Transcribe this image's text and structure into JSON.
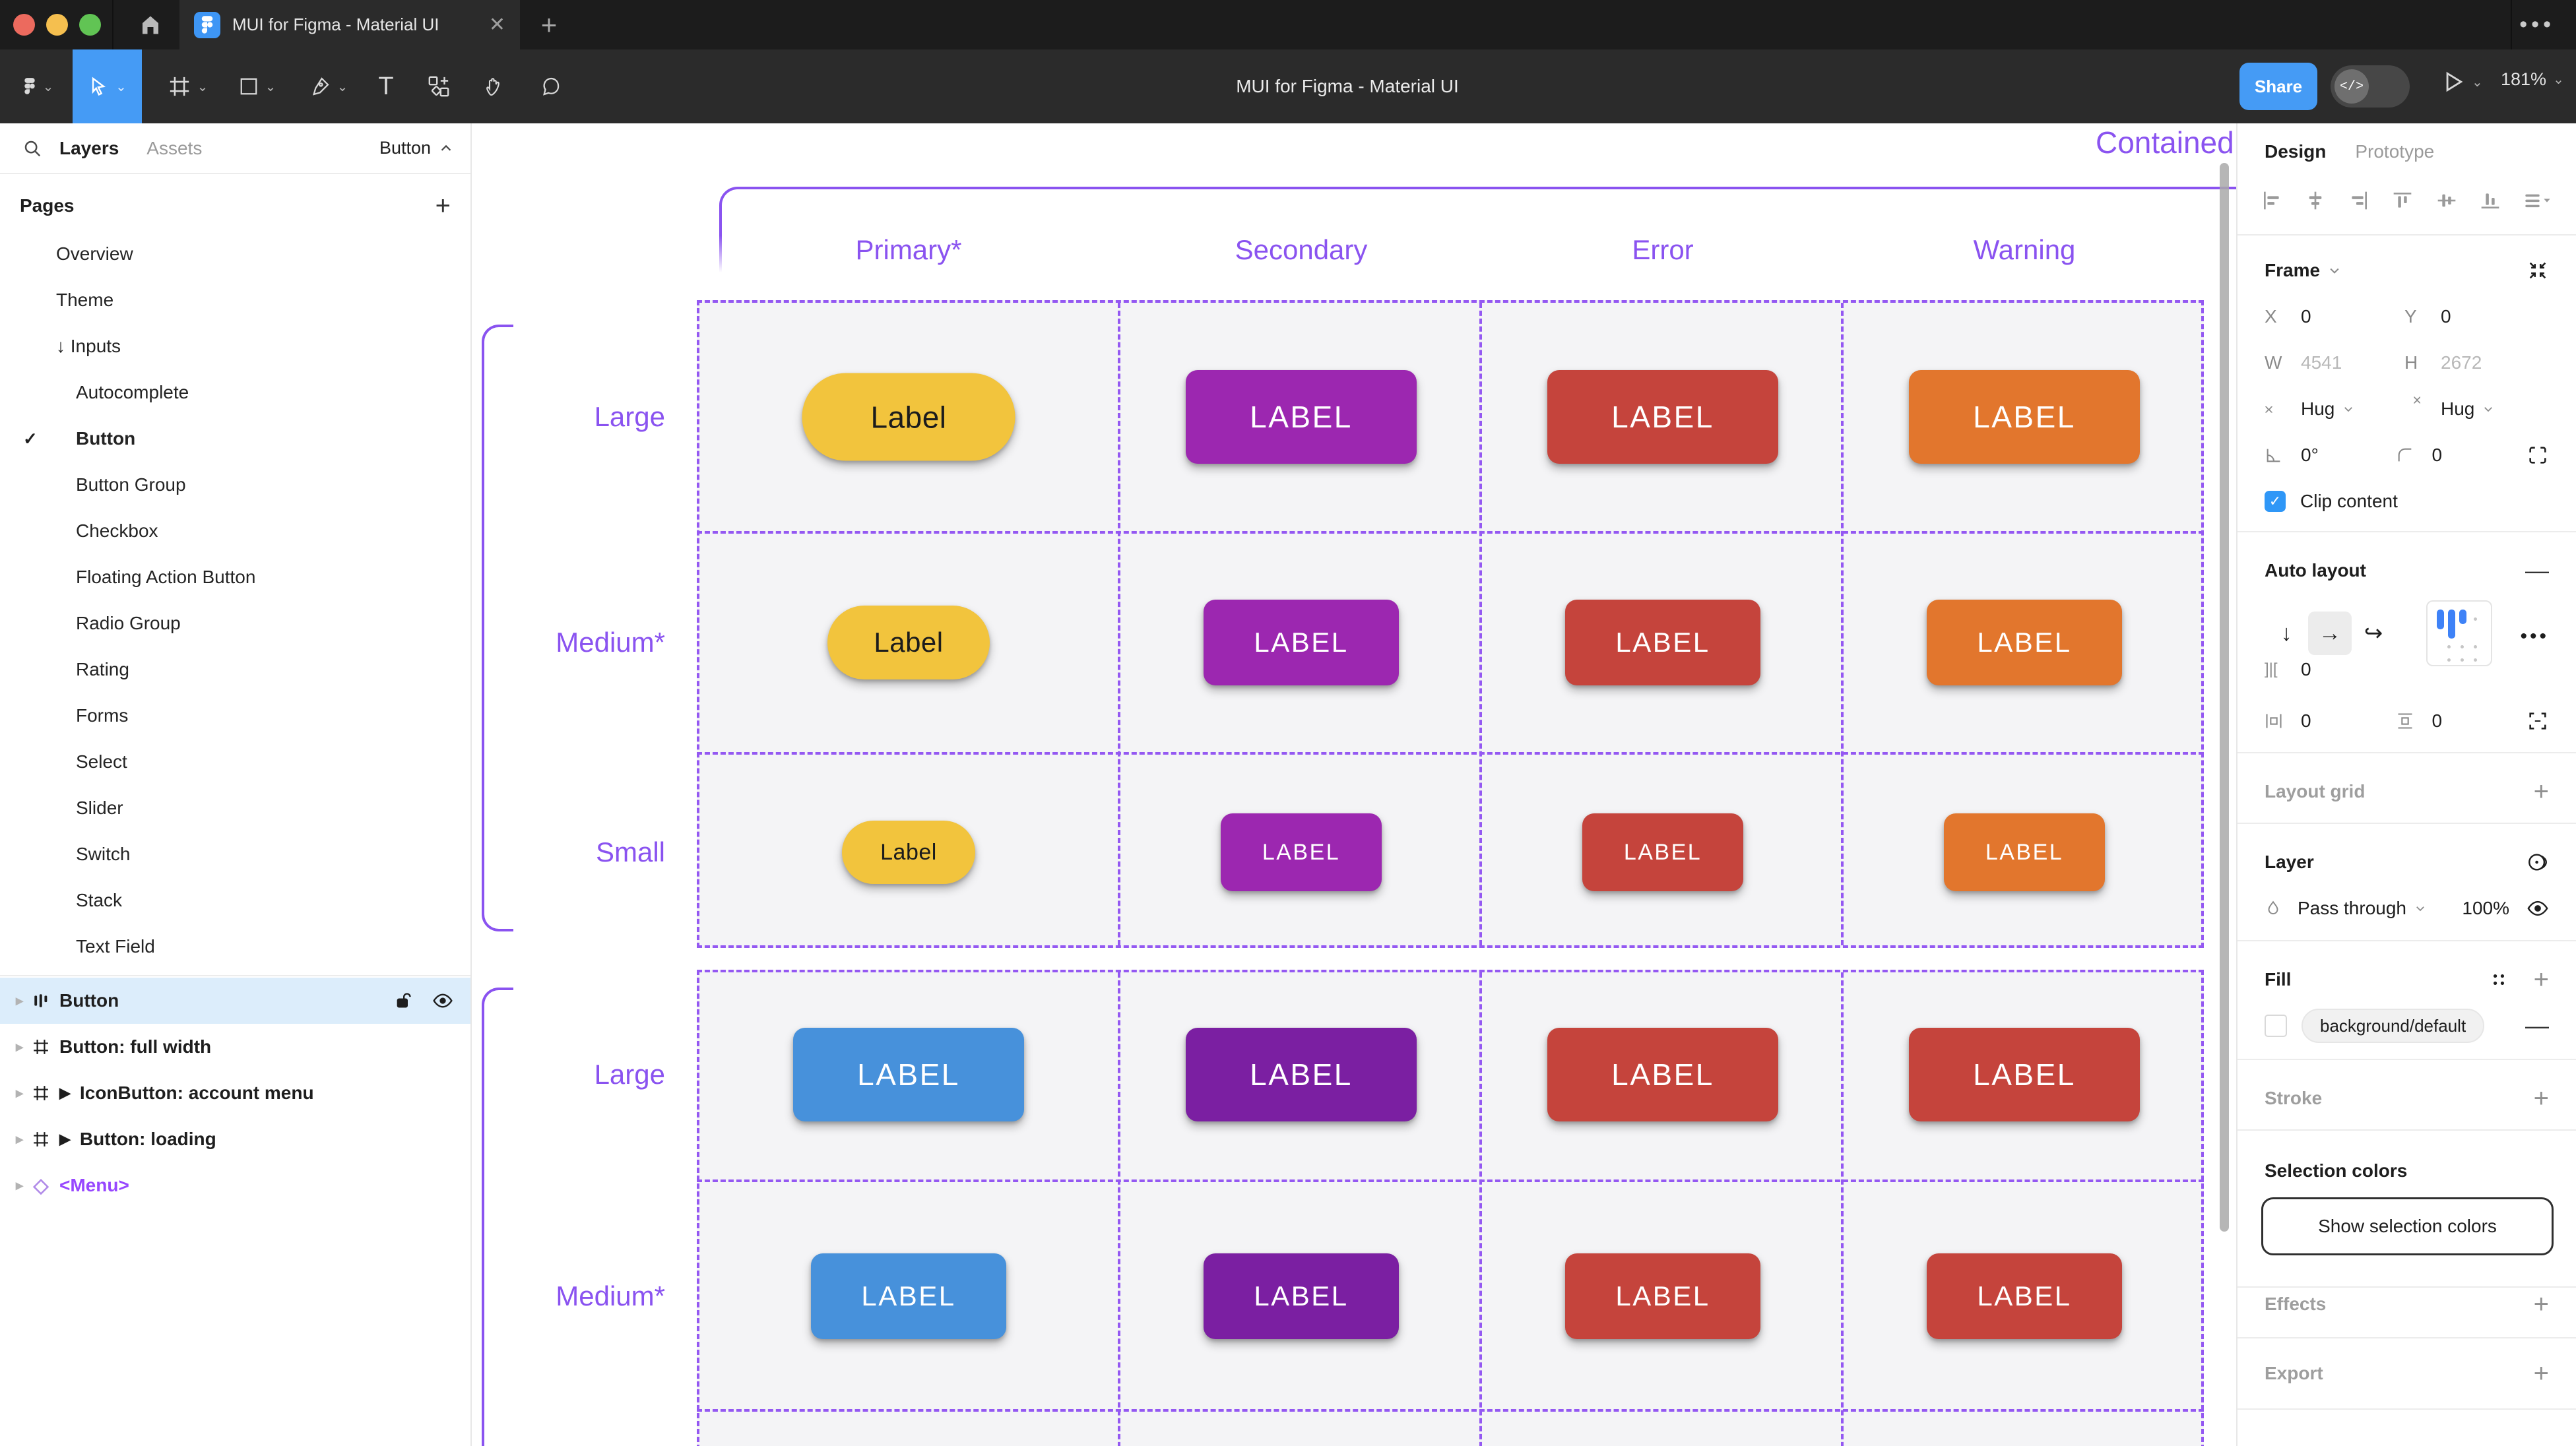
{
  "window": {
    "tab_title": "MUI for Figma - Material UI",
    "toolbar_title": "MUI for Figma - Material UI",
    "share_label": "Share",
    "zoom_level": "181%",
    "dev_toggle_glyph": "</>",
    "menu_dots": "•••"
  },
  "sidebar": {
    "tabs": {
      "layers": "Layers",
      "assets": "Assets"
    },
    "page_switcher": "Button",
    "pages_header": "Pages",
    "pages": [
      {
        "label": "Overview",
        "level": 1
      },
      {
        "label": "Theme",
        "level": 1
      },
      {
        "label": "Inputs",
        "level": 1,
        "prefix": "↓"
      },
      {
        "label": "Autocomplete",
        "level": 2
      },
      {
        "label": "Button",
        "level": 2,
        "checked": true
      },
      {
        "label": "Button Group",
        "level": 2
      },
      {
        "label": "Checkbox",
        "level": 2
      },
      {
        "label": "Floating Action Button",
        "level": 2
      },
      {
        "label": "Radio Group",
        "level": 2
      },
      {
        "label": "Rating",
        "level": 2
      },
      {
        "label": "Forms",
        "level": 2
      },
      {
        "label": "Select",
        "level": 2
      },
      {
        "label": "Slider",
        "level": 2
      },
      {
        "label": "Switch",
        "level": 2
      },
      {
        "label": "Stack",
        "level": 2
      },
      {
        "label": "Text Field",
        "level": 2
      }
    ],
    "layers": [
      {
        "label": "Button",
        "icon": "auto-layout",
        "selected": true
      },
      {
        "label": "Button: full width",
        "icon": "frame"
      },
      {
        "label": "IconButton: account menu",
        "icon": "frame",
        "instance": true
      },
      {
        "label": "Button: loading",
        "icon": "frame",
        "instance": true
      },
      {
        "label": "<Menu>",
        "icon": "component",
        "purple": true
      }
    ]
  },
  "canvas": {
    "frame_title": "Contained",
    "columns": [
      "Primary*",
      "Secondary",
      "Error",
      "Warning"
    ],
    "palette": {
      "yellow": "#F2C43D",
      "secondary": "#9C27B0",
      "error": "#C5443C",
      "warning": "#E2762D",
      "blue": "#4791DB",
      "secondaryDark": "#7B1FA2"
    },
    "tables": [
      {
        "rows": [
          {
            "label": "Large",
            "size": "large",
            "buttons": [
              {
                "text": "Label",
                "color": "yellow",
                "shape": "pill"
              },
              {
                "text": "LABEL",
                "color": "secondary",
                "shape": "rect"
              },
              {
                "text": "LABEL",
                "color": "error",
                "shape": "rect"
              },
              {
                "text": "LABEL",
                "color": "warning",
                "shape": "rect"
              }
            ]
          },
          {
            "label": "Medium*",
            "size": "medium",
            "buttons": [
              {
                "text": "Label",
                "color": "yellow",
                "shape": "pill"
              },
              {
                "text": "LABEL",
                "color": "secondary",
                "shape": "rect"
              },
              {
                "text": "LABEL",
                "color": "error",
                "shape": "rect"
              },
              {
                "text": "LABEL",
                "color": "warning",
                "shape": "rect"
              }
            ]
          },
          {
            "label": "Small",
            "size": "small",
            "buttons": [
              {
                "text": "Label",
                "color": "yellow",
                "shape": "pill"
              },
              {
                "text": "LABEL",
                "color": "secondary",
                "shape": "rect"
              },
              {
                "text": "LABEL",
                "color": "error",
                "shape": "rect"
              },
              {
                "text": "LABEL",
                "color": "warning",
                "shape": "rect"
              }
            ]
          }
        ]
      },
      {
        "rows": [
          {
            "label": "Large",
            "size": "large",
            "buttons": [
              {
                "text": "LABEL",
                "color": "blue",
                "shape": "rect"
              },
              {
                "text": "LABEL",
                "color": "secondaryDark",
                "shape": "rect"
              },
              {
                "text": "LABEL",
                "color": "error",
                "shape": "rect"
              },
              {
                "text": "LABEL",
                "color": "error",
                "shape": "rect"
              }
            ]
          },
          {
            "label": "Medium*",
            "size": "medium",
            "buttons": [
              {
                "text": "LABEL",
                "color": "blue",
                "shape": "rect"
              },
              {
                "text": "LABEL",
                "color": "secondaryDark",
                "shape": "rect"
              },
              {
                "text": "LABEL",
                "color": "error",
                "shape": "rect"
              },
              {
                "text": "LABEL",
                "color": "error",
                "shape": "rect"
              }
            ]
          }
        ]
      }
    ]
  },
  "inspector": {
    "tabs": {
      "design": "Design",
      "prototype": "Prototype"
    },
    "frame": {
      "title": "Frame",
      "x_label": "X",
      "x": "0",
      "y_label": "Y",
      "y": "0",
      "w_label": "W",
      "w": "4541",
      "h_label": "H",
      "h": "2672",
      "h_resize": "Hug",
      "v_resize": "Hug",
      "rotation": "0°",
      "radius": "0",
      "clip_label": "Clip content"
    },
    "auto_layout": {
      "title": "Auto layout",
      "gap": "0",
      "pad_h": "0",
      "pad_v": "0"
    },
    "layout_grid": {
      "title": "Layout grid"
    },
    "layer": {
      "title": "Layer",
      "blend_mode": "Pass through",
      "opacity": "100%"
    },
    "fill": {
      "title": "Fill",
      "token": "background/default"
    },
    "stroke": {
      "title": "Stroke"
    },
    "selection_colors": {
      "title": "Selection colors",
      "button": "Show selection colors"
    },
    "effects": {
      "title": "Effects"
    },
    "export": {
      "title": "Export"
    }
  }
}
